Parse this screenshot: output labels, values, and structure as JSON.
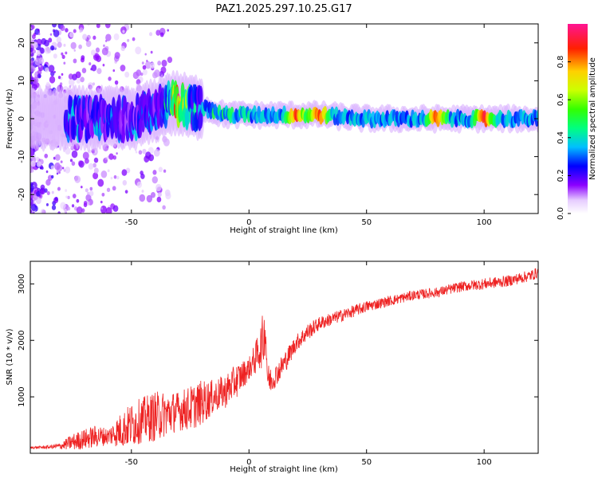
{
  "title": "PAZ1.2025.297.10.25.G17",
  "chart_data": [
    {
      "type": "heatmap",
      "xlabel": "Height of straight line (km)",
      "ylabel": "Frequency (Hz)",
      "xlim": [
        -93,
        123
      ],
      "ylim": [
        -25,
        25
      ],
      "xticks": [
        -50,
        0,
        50,
        100
      ],
      "yticks": [
        -20,
        -10,
        0,
        10,
        20
      ],
      "colorbar": {
        "label": "Normalized spectral amplitude",
        "ticks": [
          "0.0",
          "0.2",
          "0.4",
          "0.6",
          "0.8"
        ],
        "range": [
          0,
          1
        ]
      },
      "ridge": {
        "height_km": [
          -93,
          -80,
          -70,
          -60,
          -50,
          -40,
          -35,
          -30,
          -25,
          -20,
          -15,
          -10,
          -5,
          0,
          5,
          10,
          20,
          30,
          50,
          70,
          90,
          110,
          123
        ],
        "frequency_hz": [
          0,
          0,
          0,
          0,
          0,
          2,
          4,
          4,
          3,
          3,
          2,
          1,
          1,
          1,
          1,
          1,
          1,
          1,
          0,
          0,
          0,
          0,
          0
        ]
      },
      "peak_amplitude_height_km": [
        -30,
        20,
        30,
        80,
        100
      ]
    },
    {
      "type": "line",
      "xlabel": "Height of straight line (km)",
      "ylabel": "SNR (10 * v/v)",
      "xlim": [
        -93,
        123
      ],
      "ylim": [
        0,
        3400
      ],
      "xticks": [
        -50,
        0,
        50,
        100
      ],
      "yticks": [
        1000,
        2000,
        3000
      ],
      "series": [
        {
          "color": "#ee2222",
          "x": [
            -93,
            -85,
            -80,
            -75,
            -70,
            -65,
            -60,
            -55,
            -50,
            -45,
            -40,
            -35,
            -30,
            -25,
            -20,
            -15,
            -10,
            -5,
            0,
            3,
            5,
            6,
            7,
            8,
            10,
            15,
            20,
            25,
            30,
            40,
            50,
            60,
            70,
            80,
            90,
            100,
            110,
            115,
            120,
            123
          ],
          "y": [
            100,
            110,
            130,
            200,
            250,
            300,
            300,
            400,
            500,
            600,
            650,
            700,
            750,
            800,
            900,
            1000,
            1100,
            1300,
            1500,
            1700,
            1900,
            2000,
            2200,
            1300,
            1300,
            1600,
            1950,
            2150,
            2300,
            2450,
            2600,
            2700,
            2800,
            2850,
            2950,
            3000,
            3050,
            3100,
            3150,
            3200
          ],
          "noise": [
            20,
            30,
            60,
            150,
            180,
            200,
            150,
            300,
            400,
            400,
            450,
            400,
            350,
            400,
            400,
            300,
            300,
            300,
            200,
            300,
            400,
            500,
            400,
            300,
            200,
            200,
            150,
            150,
            120,
            110,
            100,
            90,
            90,
            90,
            90,
            100,
            100,
            100,
            100,
            100
          ]
        }
      ]
    }
  ],
  "colors": {
    "line": "#ee2222",
    "axis": "#000000"
  }
}
